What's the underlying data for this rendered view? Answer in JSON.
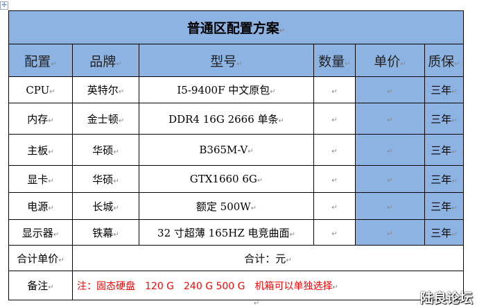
{
  "mark": "↵",
  "title": "普通区配置方案",
  "headers": [
    "配置",
    "品牌",
    "型号",
    "数量",
    "单价",
    "质保"
  ],
  "rows": [
    {
      "item": "CPU",
      "brand": "英特尔",
      "model": "I5-9400F 中文原包",
      "qty": "",
      "price": "",
      "warranty": "三年"
    },
    {
      "item": "内存",
      "brand": "金士顿",
      "model": "DDR4 16G 2666 单条",
      "qty": "",
      "price": "",
      "warranty": "三年"
    },
    {
      "item": "主板",
      "brand": "华硕",
      "model": "B365M-V",
      "qty": "",
      "price": "",
      "warranty": "三年"
    },
    {
      "item": "显卡",
      "brand": "华硕",
      "model": "GTX1660 6G",
      "qty": "",
      "price": "",
      "warranty": "三年"
    },
    {
      "item": "电源",
      "brand": "长城",
      "model": "额定 500W",
      "qty": "",
      "price": "",
      "warranty": "三年"
    },
    {
      "item": "显示器",
      "brand": "铁幕",
      "model": "32 寸超薄 165HZ 电竞曲面",
      "qty": "",
      "price": "",
      "warranty": "三年"
    }
  ],
  "total": {
    "label": "合计单价",
    "value": "合计：元"
  },
  "note": {
    "label": "备注",
    "value": "注：固态硬盘　120 G　240 G 500 G　机箱可以单独选择"
  },
  "watermark": "陆良论坛",
  "colors": {
    "header_bg": "#8db3e2",
    "note_text": "#ff0000"
  }
}
